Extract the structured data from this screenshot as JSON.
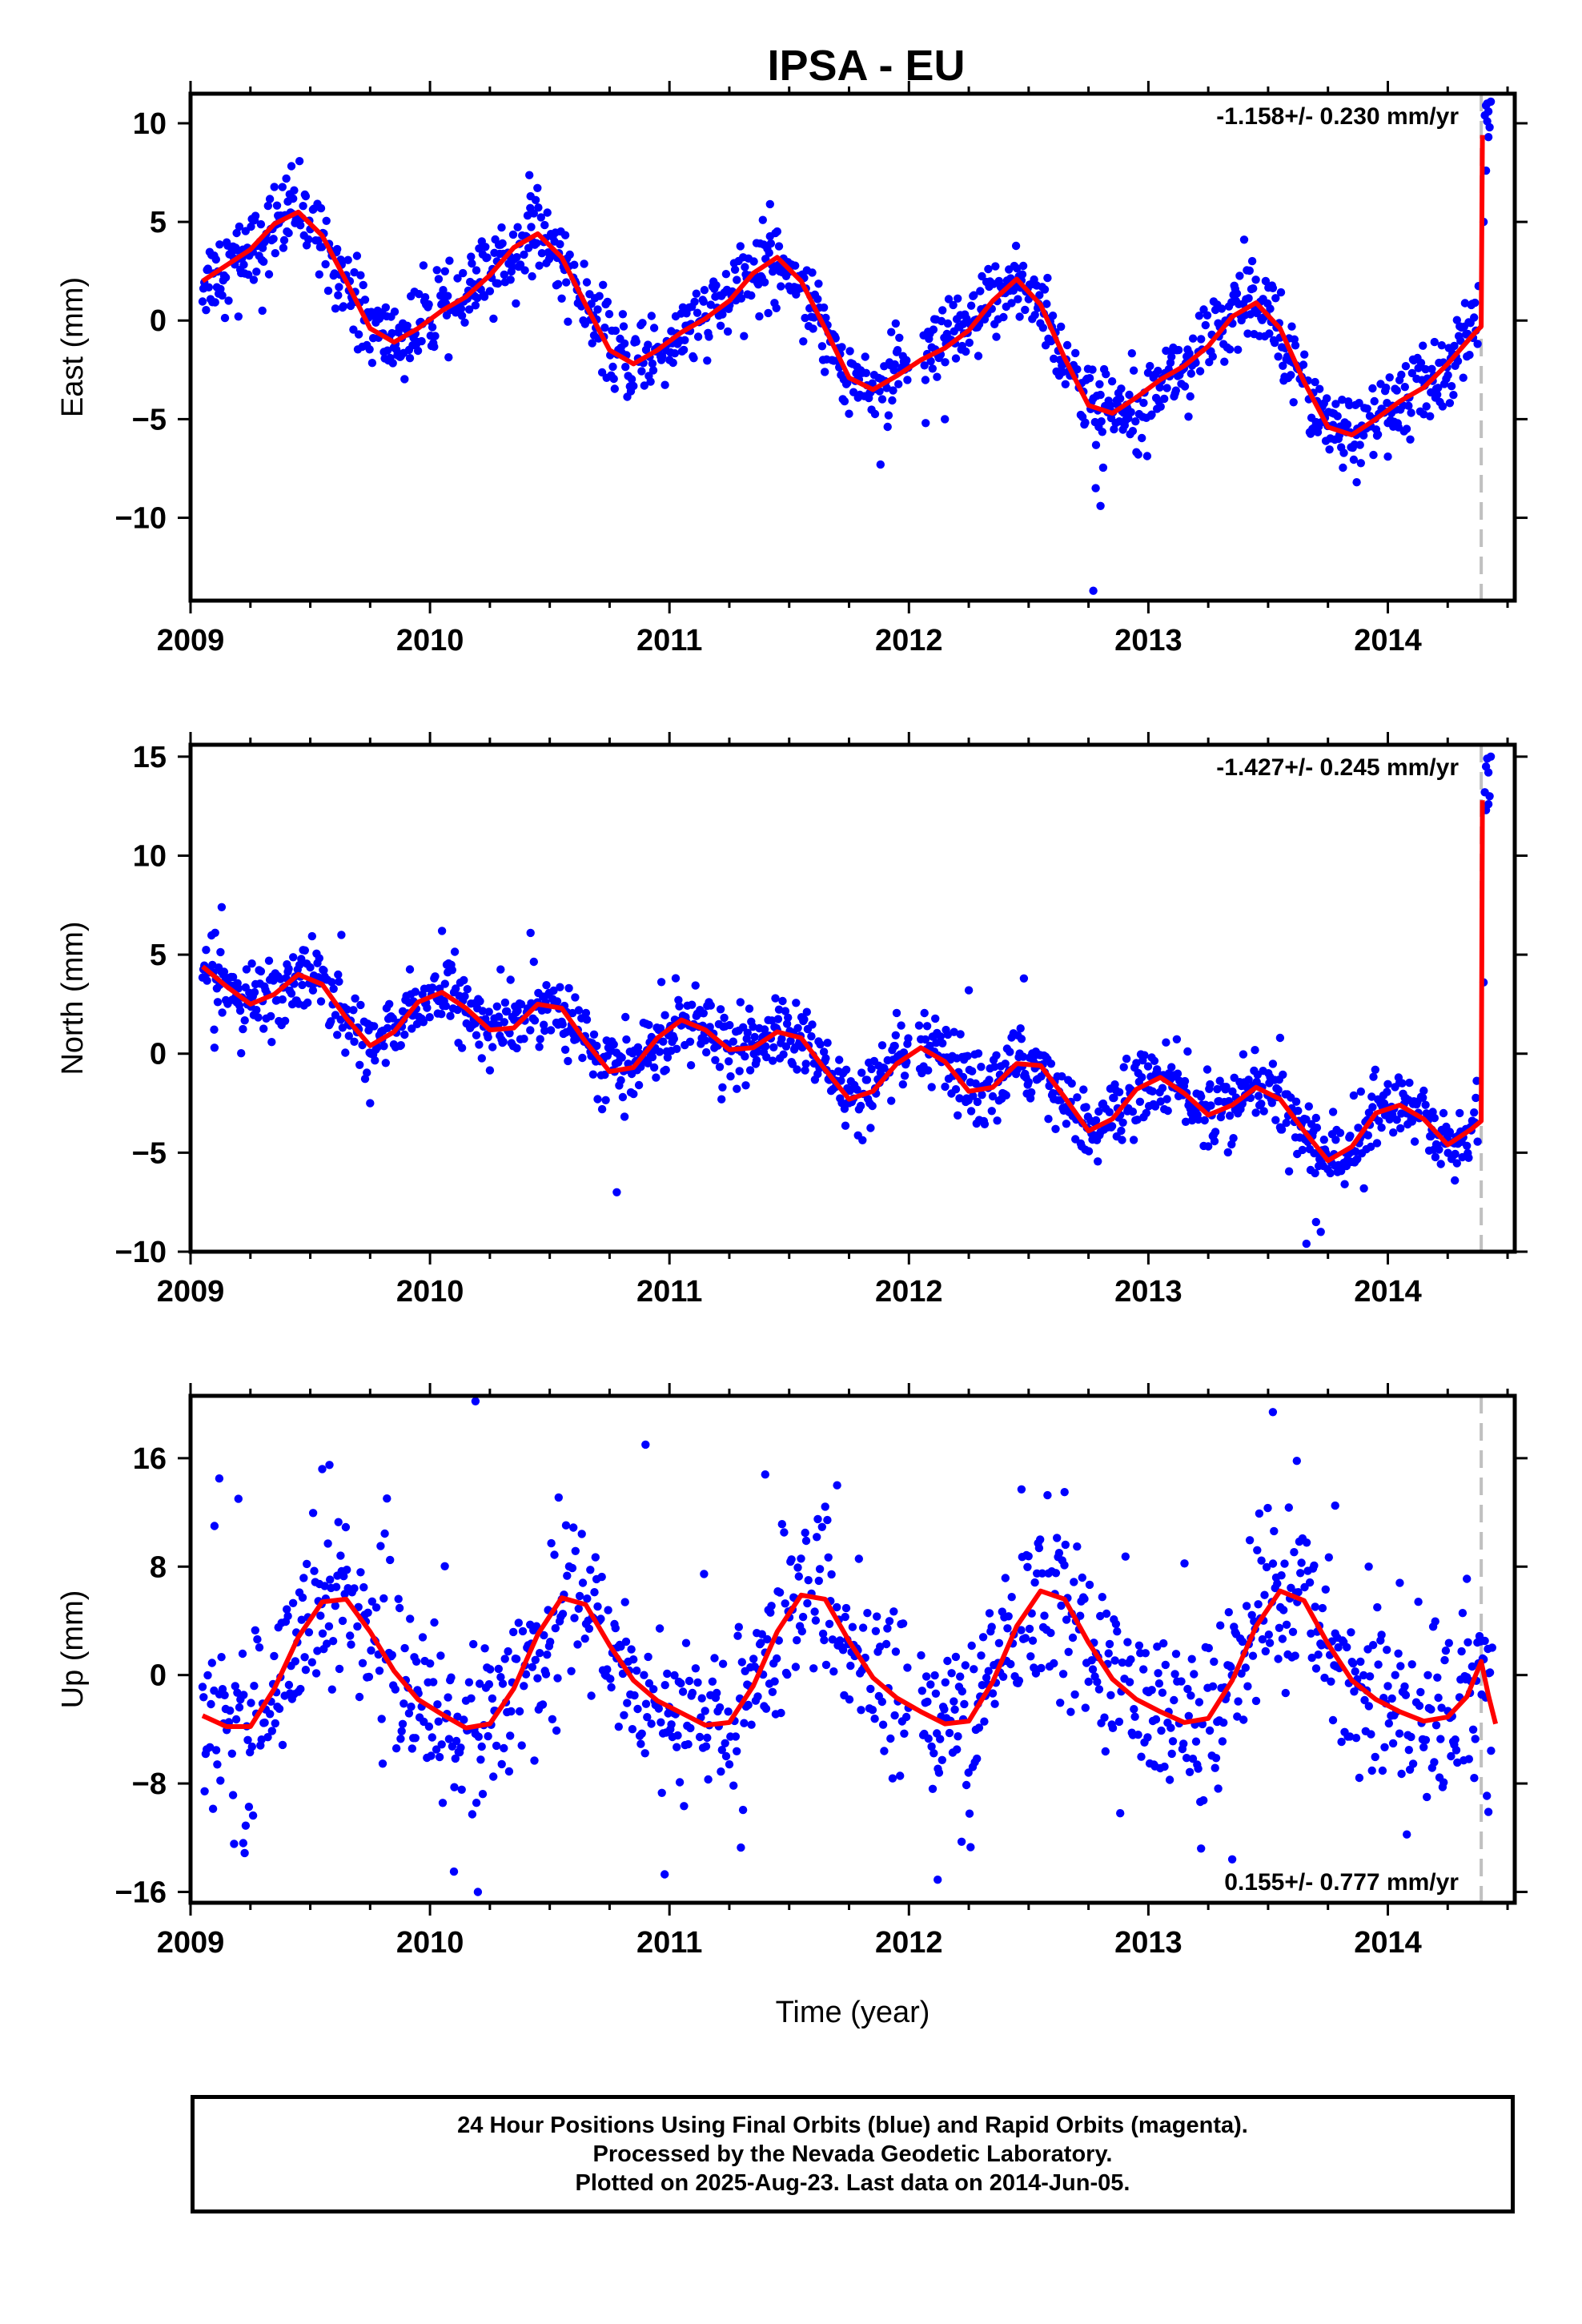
{
  "title": "IPSA - EU",
  "x_axis_title": "Time (year)",
  "caption": [
    "24 Hour Positions Using Final Orbits (blue) and Rapid Orbits (magenta).",
    "Processed by the Nevada Geodetic Laboratory.",
    "Plotted on 2025-Aug-23. Last data on 2014-Jun-05."
  ],
  "colors": {
    "points": "#0000ff",
    "fit": "#ff0000",
    "offset_line": "#c0c0c0",
    "frame": "#000000"
  },
  "chart_data": [
    {
      "type": "scatter",
      "id": "east",
      "ylabel": "East (mm)",
      "rate": "-1.158+/- 0.230 mm/yr",
      "rate_position": "top-right",
      "xlim": [
        2009.0,
        2014.53
      ],
      "ylim": [
        -14.2,
        11.5
      ],
      "xticks": [
        2009,
        2010,
        2011,
        2012,
        2013,
        2014
      ],
      "yticks": [
        -10,
        -5,
        0,
        5,
        10
      ],
      "yticklabels": [
        "−10",
        "−5",
        "0",
        "5",
        "10"
      ],
      "offset_epoch": 2014.39,
      "fit": [
        [
          2009.05,
          2.0
        ],
        [
          2009.15,
          2.8
        ],
        [
          2009.25,
          3.6
        ],
        [
          2009.35,
          4.9
        ],
        [
          2009.45,
          5.5
        ],
        [
          2009.55,
          4.3
        ],
        [
          2009.65,
          2.0
        ],
        [
          2009.75,
          -0.4
        ],
        [
          2009.85,
          -1.1
        ],
        [
          2009.95,
          -0.4
        ],
        [
          2010.05,
          0.5
        ],
        [
          2010.15,
          1.2
        ],
        [
          2010.25,
          2.3
        ],
        [
          2010.35,
          3.7
        ],
        [
          2010.45,
          4.4
        ],
        [
          2010.55,
          3.2
        ],
        [
          2010.65,
          0.8
        ],
        [
          2010.75,
          -1.5
        ],
        [
          2010.85,
          -2.2
        ],
        [
          2010.95,
          -1.5
        ],
        [
          2011.05,
          -0.6
        ],
        [
          2011.15,
          0.1
        ],
        [
          2011.25,
          1.0
        ],
        [
          2011.35,
          2.4
        ],
        [
          2011.45,
          3.2
        ],
        [
          2011.55,
          2.0
        ],
        [
          2011.65,
          -0.4
        ],
        [
          2011.75,
          -2.9
        ],
        [
          2011.85,
          -3.5
        ],
        [
          2011.95,
          -2.8
        ],
        [
          2012.05,
          -2.0
        ],
        [
          2012.15,
          -1.4
        ],
        [
          2012.25,
          -0.5
        ],
        [
          2012.35,
          1.0
        ],
        [
          2012.45,
          2.1
        ],
        [
          2012.55,
          0.8
        ],
        [
          2012.65,
          -1.9
        ],
        [
          2012.75,
          -4.3
        ],
        [
          2012.85,
          -4.7
        ],
        [
          2012.95,
          -3.9
        ],
        [
          2013.05,
          -3.0
        ],
        [
          2013.15,
          -2.3
        ],
        [
          2013.25,
          -1.3
        ],
        [
          2013.35,
          0.2
        ],
        [
          2013.45,
          0.9
        ],
        [
          2013.55,
          -0.4
        ],
        [
          2013.65,
          -3.1
        ],
        [
          2013.75,
          -5.4
        ],
        [
          2013.85,
          -5.8
        ],
        [
          2013.95,
          -5.0
        ],
        [
          2014.05,
          -4.1
        ],
        [
          2014.15,
          -3.4
        ],
        [
          2014.25,
          -2.2
        ],
        [
          2014.35,
          -0.8
        ],
        [
          2014.39,
          -0.3
        ],
        [
          2014.395,
          9.4
        ]
      ],
      "points": {
        "start": 2009.05,
        "end": 2014.38,
        "step": 0.00375,
        "gaps": [
          [
            2012.0,
            2012.06
          ]
        ],
        "spread": 1.0,
        "outliers": [
          [
            2012.77,
            -13.7
          ],
          [
            2009.4,
            7.2
          ],
          [
            2010.42,
            6.3
          ],
          [
            2011.42,
            5.9
          ],
          [
            2012.8,
            -9.4
          ],
          [
            2012.78,
            -8.5
          ],
          [
            2013.4,
            4.1
          ],
          [
            2009.2,
            0.2
          ],
          [
            2009.3,
            0.5
          ],
          [
            2014.0,
            -6.9
          ],
          [
            2013.87,
            -8.2
          ],
          [
            2012.07,
            -5.2
          ],
          [
            2012.15,
            -5.0
          ]
        ],
        "tail": [
          [
            2014.405,
            10.4
          ],
          [
            2014.41,
            10.9
          ],
          [
            2014.415,
            11.0
          ],
          [
            2014.42,
            10.6
          ],
          [
            2014.425,
            9.8
          ],
          [
            2014.42,
            9.3
          ],
          [
            2014.41,
            7.6
          ],
          [
            2014.4,
            5.0
          ],
          [
            2014.43,
            11.1
          ],
          [
            2014.415,
            10.1
          ]
        ]
      }
    },
    {
      "type": "scatter",
      "id": "north",
      "ylabel": "North (mm)",
      "rate": "-1.427+/- 0.245 mm/yr",
      "rate_position": "top-right",
      "xlim": [
        2009.0,
        2014.53
      ],
      "ylim": [
        -10.0,
        15.6
      ],
      "xticks": [
        2009,
        2010,
        2011,
        2012,
        2013,
        2014
      ],
      "yticks": [
        -10,
        -5,
        0,
        5,
        10,
        15
      ],
      "yticklabels": [
        "−10",
        "−5",
        "0",
        "5",
        "10",
        "15"
      ],
      "offset_epoch": 2014.39,
      "fit": [
        [
          2009.05,
          4.4
        ],
        [
          2009.15,
          3.4
        ],
        [
          2009.25,
          2.5
        ],
        [
          2009.35,
          3.0
        ],
        [
          2009.45,
          4.0
        ],
        [
          2009.55,
          3.5
        ],
        [
          2009.65,
          1.8
        ],
        [
          2009.75,
          0.4
        ],
        [
          2009.85,
          1.1
        ],
        [
          2009.95,
          2.6
        ],
        [
          2010.05,
          3.1
        ],
        [
          2010.15,
          2.3
        ],
        [
          2010.25,
          1.2
        ],
        [
          2010.35,
          1.3
        ],
        [
          2010.45,
          2.5
        ],
        [
          2010.55,
          2.3
        ],
        [
          2010.65,
          0.6
        ],
        [
          2010.75,
          -0.9
        ],
        [
          2010.85,
          -0.7
        ],
        [
          2010.95,
          0.8
        ],
        [
          2011.05,
          1.7
        ],
        [
          2011.15,
          1.2
        ],
        [
          2011.25,
          0.2
        ],
        [
          2011.35,
          0.3
        ],
        [
          2011.45,
          1.1
        ],
        [
          2011.55,
          0.8
        ],
        [
          2011.65,
          -0.8
        ],
        [
          2011.75,
          -2.3
        ],
        [
          2011.85,
          -1.9
        ],
        [
          2011.95,
          -0.5
        ],
        [
          2012.05,
          0.3
        ],
        [
          2012.15,
          -0.4
        ],
        [
          2012.25,
          -1.9
        ],
        [
          2012.35,
          -1.7
        ],
        [
          2012.45,
          -0.5
        ],
        [
          2012.55,
          -0.6
        ],
        [
          2012.65,
          -2.2
        ],
        [
          2012.75,
          -3.9
        ],
        [
          2012.85,
          -3.3
        ],
        [
          2012.95,
          -1.8
        ],
        [
          2013.05,
          -1.2
        ],
        [
          2013.15,
          -2.0
        ],
        [
          2013.25,
          -3.1
        ],
        [
          2013.35,
          -2.6
        ],
        [
          2013.45,
          -1.7
        ],
        [
          2013.55,
          -2.3
        ],
        [
          2013.65,
          -3.9
        ],
        [
          2013.75,
          -5.4
        ],
        [
          2013.85,
          -4.7
        ],
        [
          2013.95,
          -3.0
        ],
        [
          2014.05,
          -2.6
        ],
        [
          2014.15,
          -3.3
        ],
        [
          2014.25,
          -4.6
        ],
        [
          2014.35,
          -3.8
        ],
        [
          2014.39,
          -3.4
        ],
        [
          2014.395,
          12.8
        ]
      ],
      "points": {
        "start": 2009.05,
        "end": 2014.38,
        "step": 0.00375,
        "gaps": [
          [
            2012.0,
            2012.04
          ]
        ],
        "spread": 0.9,
        "outliers": [
          [
            2009.13,
            7.4
          ],
          [
            2010.05,
            6.2
          ],
          [
            2010.42,
            6.1
          ],
          [
            2009.63,
            6.0
          ],
          [
            2010.78,
            -7.0
          ],
          [
            2012.48,
            3.8
          ],
          [
            2013.66,
            -9.6
          ],
          [
            2013.72,
            -9.0
          ],
          [
            2013.7,
            -8.5
          ],
          [
            2013.9,
            -6.8
          ],
          [
            2009.1,
            0.3
          ],
          [
            2009.75,
            -2.5
          ],
          [
            2014.28,
            -6.4
          ],
          [
            2013.55,
            0.8
          ],
          [
            2012.25,
            3.2
          ]
        ],
        "tail": [
          [
            2014.405,
            13.2
          ],
          [
            2014.41,
            14.5
          ],
          [
            2014.415,
            14.9
          ],
          [
            2014.42,
            14.2
          ],
          [
            2014.425,
            13.0
          ],
          [
            2014.41,
            12.3
          ],
          [
            2014.4,
            3.6
          ],
          [
            2014.43,
            15.0
          ],
          [
            2014.42,
            12.6
          ]
        ]
      }
    },
    {
      "type": "scatter",
      "id": "up",
      "ylabel": "Up (mm)",
      "rate": "0.155+/- 0.777 mm/yr",
      "rate_position": "bottom-right",
      "xlim": [
        2009.0,
        2014.53
      ],
      "ylim": [
        -16.8,
        20.6
      ],
      "xticks": [
        2009,
        2010,
        2011,
        2012,
        2013,
        2014
      ],
      "yticks": [
        -16,
        -8,
        0,
        8,
        16
      ],
      "yticklabels": [
        "−16",
        "−8",
        "0",
        "8",
        "16"
      ],
      "offset_epoch": 2014.39,
      "fit": [
        [
          2009.05,
          -3.0
        ],
        [
          2009.15,
          -3.8
        ],
        [
          2009.25,
          -3.8
        ],
        [
          2009.35,
          -1.0
        ],
        [
          2009.45,
          2.8
        ],
        [
          2009.55,
          5.4
        ],
        [
          2009.65,
          5.6
        ],
        [
          2009.75,
          3.2
        ],
        [
          2009.85,
          0.3
        ],
        [
          2009.95,
          -1.8
        ],
        [
          2010.05,
          -2.9
        ],
        [
          2010.15,
          -3.9
        ],
        [
          2010.25,
          -3.6
        ],
        [
          2010.35,
          -1.0
        ],
        [
          2010.45,
          3.0
        ],
        [
          2010.55,
          5.7
        ],
        [
          2010.65,
          5.2
        ],
        [
          2010.75,
          2.2
        ],
        [
          2010.85,
          -0.4
        ],
        [
          2010.95,
          -1.9
        ],
        [
          2011.05,
          -2.8
        ],
        [
          2011.15,
          -3.7
        ],
        [
          2011.25,
          -3.5
        ],
        [
          2011.35,
          -0.8
        ],
        [
          2011.45,
          3.2
        ],
        [
          2011.55,
          5.9
        ],
        [
          2011.65,
          5.6
        ],
        [
          2011.75,
          2.5
        ],
        [
          2011.85,
          -0.2
        ],
        [
          2011.95,
          -1.7
        ],
        [
          2012.05,
          -2.7
        ],
        [
          2012.15,
          -3.6
        ],
        [
          2012.25,
          -3.4
        ],
        [
          2012.35,
          -0.5
        ],
        [
          2012.45,
          3.6
        ],
        [
          2012.55,
          6.2
        ],
        [
          2012.65,
          5.6
        ],
        [
          2012.75,
          2.4
        ],
        [
          2012.85,
          -0.3
        ],
        [
          2012.95,
          -1.8
        ],
        [
          2013.05,
          -2.7
        ],
        [
          2013.15,
          -3.5
        ],
        [
          2013.25,
          -3.2
        ],
        [
          2013.35,
          -0.4
        ],
        [
          2013.45,
          3.6
        ],
        [
          2013.55,
          6.2
        ],
        [
          2013.65,
          5.5
        ],
        [
          2013.75,
          2.3
        ],
        [
          2013.85,
          -0.4
        ],
        [
          2013.95,
          -1.8
        ],
        [
          2014.05,
          -2.7
        ],
        [
          2014.15,
          -3.4
        ],
        [
          2014.25,
          -3.1
        ],
        [
          2014.33,
          -1.6
        ],
        [
          2014.39,
          1.0
        ],
        [
          2014.42,
          -1.5
        ],
        [
          2014.45,
          -3.6
        ]
      ],
      "points": {
        "start": 2009.05,
        "end": 2014.44,
        "step": 0.0044,
        "gaps": [
          [
            2012.0,
            2012.05
          ]
        ],
        "spread": 3.1,
        "outliers": [
          [
            2010.19,
            20.2
          ],
          [
            2010.9,
            17.0
          ],
          [
            2013.52,
            19.4
          ],
          [
            2013.62,
            15.8
          ],
          [
            2009.58,
            15.5
          ],
          [
            2009.55,
            15.2
          ],
          [
            2009.12,
            14.5
          ],
          [
            2009.2,
            13.0
          ],
          [
            2009.1,
            11.0
          ],
          [
            2011.4,
            14.8
          ],
          [
            2011.7,
            14.0
          ],
          [
            2012.47,
            13.7
          ],
          [
            2012.65,
            13.5
          ],
          [
            2010.2,
            -16.0
          ],
          [
            2010.1,
            -14.5
          ],
          [
            2010.98,
            -14.7
          ],
          [
            2012.12,
            -15.1
          ],
          [
            2013.35,
            -13.6
          ],
          [
            2013.22,
            -12.8
          ],
          [
            2012.22,
            -12.3
          ],
          [
            2009.22,
            -12.4
          ],
          [
            2014.42,
            -10.1
          ],
          [
            2013.92,
            8.0
          ],
          [
            2014.05,
            6.8
          ],
          [
            2013.78,
            12.5
          ],
          [
            2014.33,
            7.1
          ]
        ],
        "tail": []
      }
    }
  ]
}
